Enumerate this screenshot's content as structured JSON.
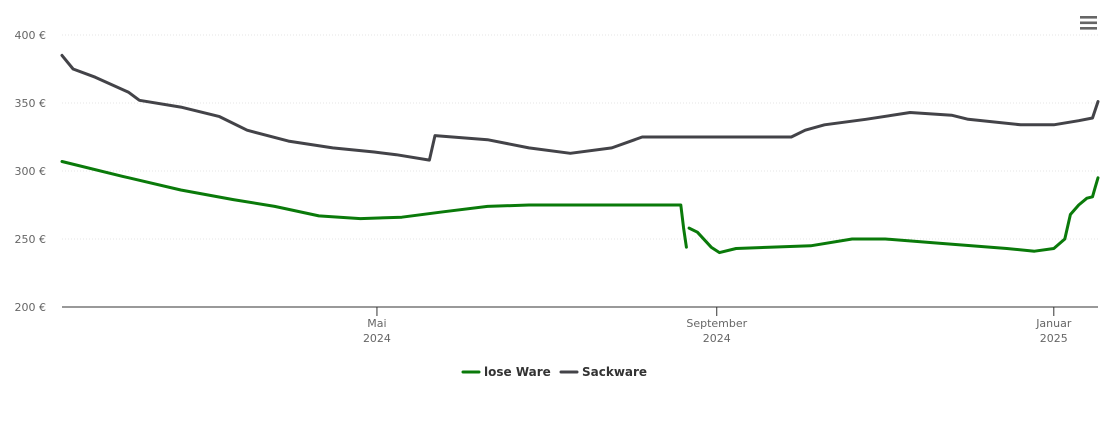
{
  "menu_icon": "hamburger-menu-icon",
  "chart_data": {
    "type": "line",
    "title": "",
    "xlabel": "",
    "ylabel": "",
    "x_range": [
      "2024-01-08",
      "2025-01-17"
    ],
    "ylim": [
      200,
      400
    ],
    "y_ticks": [
      {
        "value": 200,
        "label": "200 €"
      },
      {
        "value": 250,
        "label": "250 €"
      },
      {
        "value": 300,
        "label": "300 €"
      },
      {
        "value": 350,
        "label": "350 €"
      },
      {
        "value": 400,
        "label": "400 €"
      }
    ],
    "x_ticks": [
      {
        "date": "2024-05-01",
        "line1": "Mai",
        "line2": "2024"
      },
      {
        "date": "2024-09-01",
        "line1": "September",
        "line2": "2024"
      },
      {
        "date": "2025-01-01",
        "line1": "Januar",
        "line2": "2025"
      }
    ],
    "grid": true,
    "legend_position": "bottom-center",
    "series": [
      {
        "name": "lose Ware",
        "color": "#0a7a0a",
        "segments": [
          [
            [
              "2024-01-08",
              307
            ],
            [
              "2024-01-30",
              296
            ],
            [
              "2024-02-20",
              286
            ],
            [
              "2024-03-10",
              279
            ],
            [
              "2024-03-25",
              274
            ],
            [
              "2024-04-10",
              267
            ],
            [
              "2024-04-25",
              265
            ],
            [
              "2024-05-10",
              266
            ],
            [
              "2024-05-25",
              270
            ],
            [
              "2024-06-10",
              274
            ],
            [
              "2024-06-25",
              275
            ],
            [
              "2024-07-15",
              275
            ],
            [
              "2024-08-01",
              275
            ],
            [
              "2024-08-15",
              275
            ],
            [
              "2024-08-19",
              275
            ],
            [
              "2024-08-20",
              258
            ],
            [
              "2024-08-21",
              244
            ]
          ],
          [
            [
              "2024-08-22",
              258
            ],
            [
              "2024-08-25",
              255
            ],
            [
              "2024-08-30",
              244
            ],
            [
              "2024-09-02",
              240
            ],
            [
              "2024-09-08",
              243
            ],
            [
              "2024-09-20",
              244
            ],
            [
              "2024-10-05",
              245
            ],
            [
              "2024-10-20",
              250
            ],
            [
              "2024-11-01",
              250
            ],
            [
              "2024-11-20",
              247
            ],
            [
              "2024-12-15",
              243
            ],
            [
              "2024-12-25",
              241
            ],
            [
              "2025-01-01",
              243
            ],
            [
              "2025-01-05",
              250
            ],
            [
              "2025-01-07",
              268
            ],
            [
              "2025-01-10",
              275
            ],
            [
              "2025-01-13",
              280
            ],
            [
              "2025-01-15",
              281
            ],
            [
              "2025-01-16",
              288
            ],
            [
              "2025-01-17",
              295
            ]
          ]
        ]
      },
      {
        "name": "Sackware",
        "color": "#434348",
        "segments": [
          [
            [
              "2024-01-08",
              385
            ],
            [
              "2024-01-12",
              375
            ],
            [
              "2024-01-20",
              369
            ],
            [
              "2024-02-01",
              358
            ],
            [
              "2024-02-05",
              352
            ],
            [
              "2024-02-20",
              347
            ],
            [
              "2024-03-05",
              340
            ],
            [
              "2024-03-15",
              330
            ],
            [
              "2024-03-30",
              322
            ],
            [
              "2024-04-15",
              317
            ],
            [
              "2024-04-30",
              314
            ],
            [
              "2024-05-08",
              312
            ],
            [
              "2024-05-20",
              308
            ],
            [
              "2024-05-22",
              326
            ],
            [
              "2024-06-10",
              323
            ],
            [
              "2024-06-25",
              317
            ],
            [
              "2024-07-10",
              313
            ],
            [
              "2024-07-25",
              317
            ],
            [
              "2024-08-05",
              325
            ],
            [
              "2024-08-20",
              325
            ],
            [
              "2024-09-10",
              325
            ],
            [
              "2024-09-28",
              325
            ],
            [
              "2024-10-03",
              330
            ],
            [
              "2024-10-10",
              334
            ],
            [
              "2024-10-25",
              338
            ],
            [
              "2024-11-10",
              343
            ],
            [
              "2024-11-25",
              341
            ],
            [
              "2024-12-01",
              338
            ],
            [
              "2024-12-20",
              334
            ],
            [
              "2025-01-01",
              334
            ],
            [
              "2025-01-10",
              337
            ],
            [
              "2025-01-15",
              339
            ],
            [
              "2025-01-17",
              351
            ]
          ]
        ]
      }
    ]
  }
}
